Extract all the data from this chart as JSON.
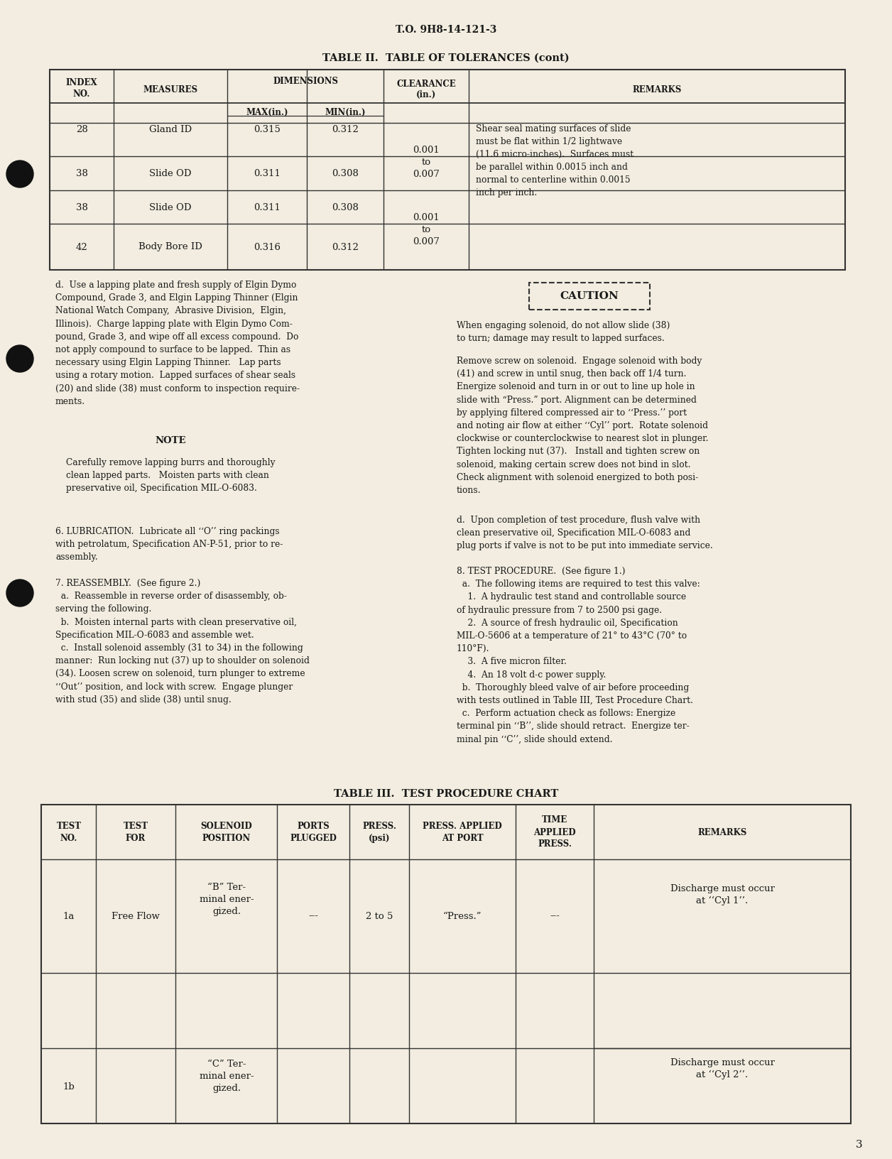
{
  "page_bg": "#f2ede0",
  "text_color": "#1a1a1a",
  "header_text": "T.O. 9H8-14-121-3",
  "table2_title": "TABLE II.  TABLE OF TOLERANCES (cont)",
  "table3_title": "TABLE III.  TEST PROCEDURE CHART",
  "page_number": "3"
}
